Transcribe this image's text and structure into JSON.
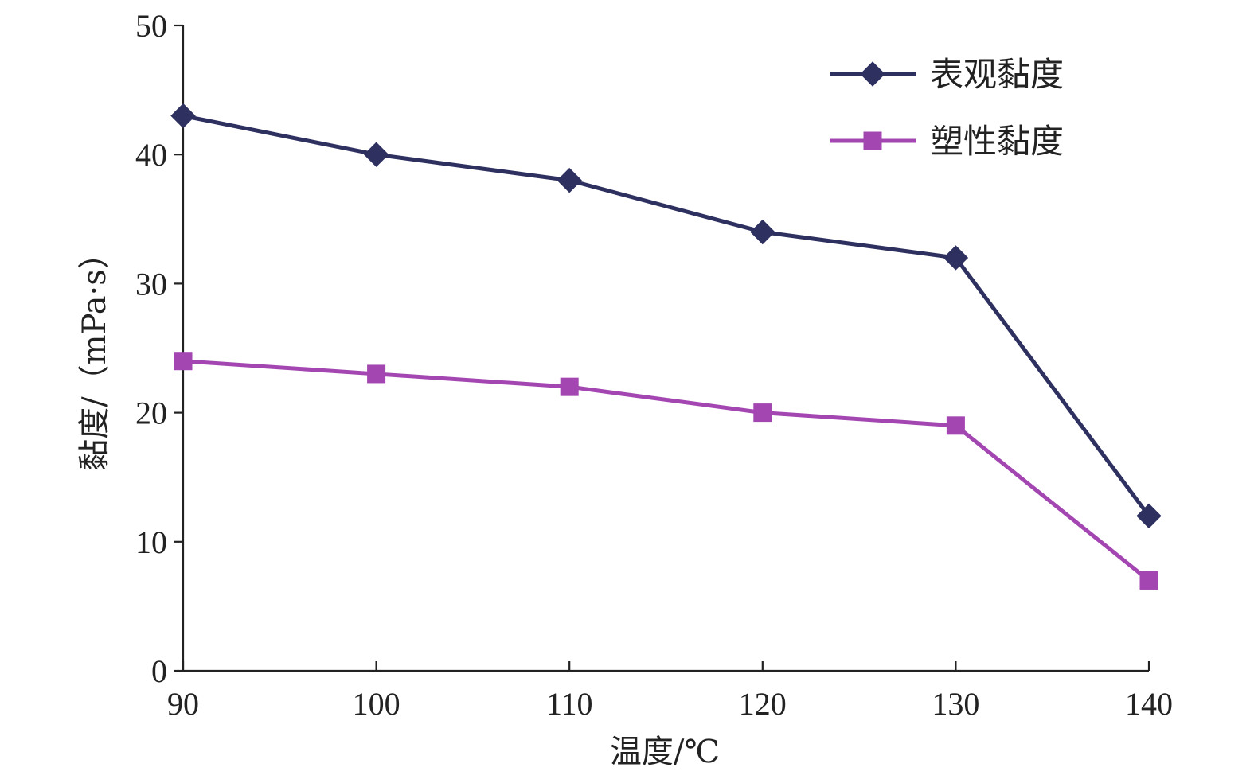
{
  "chart_data": {
    "type": "line",
    "title": "",
    "xlabel": "温度/℃",
    "ylabel": "黏度/（mPa·s）",
    "x": [
      90,
      100,
      110,
      120,
      130,
      140
    ],
    "xlim": [
      90,
      140
    ],
    "ylim": [
      0,
      50
    ],
    "x_ticks": [
      "90",
      "100",
      "110",
      "120",
      "130",
      "140"
    ],
    "y_ticks": [
      "0",
      "10",
      "20",
      "30",
      "40",
      "50"
    ],
    "grid": false,
    "legend_position": "top-right",
    "series": [
      {
        "name": "表观黏度",
        "values": [
          43,
          40,
          38,
          34,
          32,
          12
        ],
        "color": "#2e3060",
        "marker": "diamond"
      },
      {
        "name": "塑性黏度",
        "values": [
          24,
          23,
          22,
          20,
          19,
          7
        ],
        "color": "#a346b1",
        "marker": "square"
      }
    ]
  }
}
